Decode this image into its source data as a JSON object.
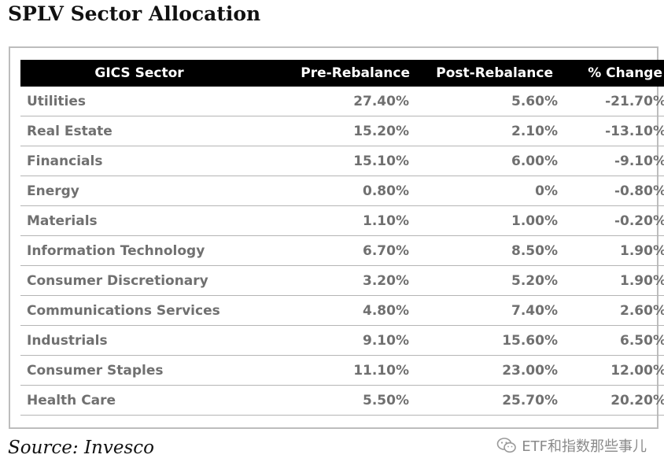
{
  "title": "SPLV Sector Allocation",
  "table": {
    "headers": [
      "GICS Sector",
      "Pre-Rebalance",
      "Post-Rebalance",
      "% Change"
    ],
    "rows": [
      {
        "sector": "Utilities",
        "pre": "27.40%",
        "post": "5.60%",
        "change": "-21.70%"
      },
      {
        "sector": "Real Estate",
        "pre": "15.20%",
        "post": "2.10%",
        "change": "-13.10%"
      },
      {
        "sector": "Financials",
        "pre": "15.10%",
        "post": "6.00%",
        "change": "-9.10%"
      },
      {
        "sector": "Energy",
        "pre": "0.80%",
        "post": "0%",
        "change": "-0.80%"
      },
      {
        "sector": "Materials",
        "pre": "1.10%",
        "post": "1.00%",
        "change": "-0.20%"
      },
      {
        "sector": "Information Technology",
        "pre": "6.70%",
        "post": "8.50%",
        "change": "1.90%"
      },
      {
        "sector": "Consumer Discretionary",
        "pre": "3.20%",
        "post": "5.20%",
        "change": "1.90%"
      },
      {
        "sector": "Communications Services",
        "pre": "4.80%",
        "post": "7.40%",
        "change": "2.60%"
      },
      {
        "sector": "Industrials",
        "pre": "9.10%",
        "post": "15.60%",
        "change": "6.50%"
      },
      {
        "sector": "Consumer Staples",
        "pre": "11.10%",
        "post": "23.00%",
        "change": "12.00%"
      },
      {
        "sector": "Health Care",
        "pre": "5.50%",
        "post": "25.70%",
        "change": "20.20%"
      }
    ]
  },
  "source": "Source: Invesco",
  "watermark": {
    "text": "ETF和指数那些事儿",
    "icon": "wechat-icon"
  },
  "colors": {
    "header_bg": "#000000",
    "header_text": "#ffffff",
    "cell_text": "#707070",
    "frame_border": "#bdbdbd",
    "row_divider": "#b5b5b5"
  }
}
